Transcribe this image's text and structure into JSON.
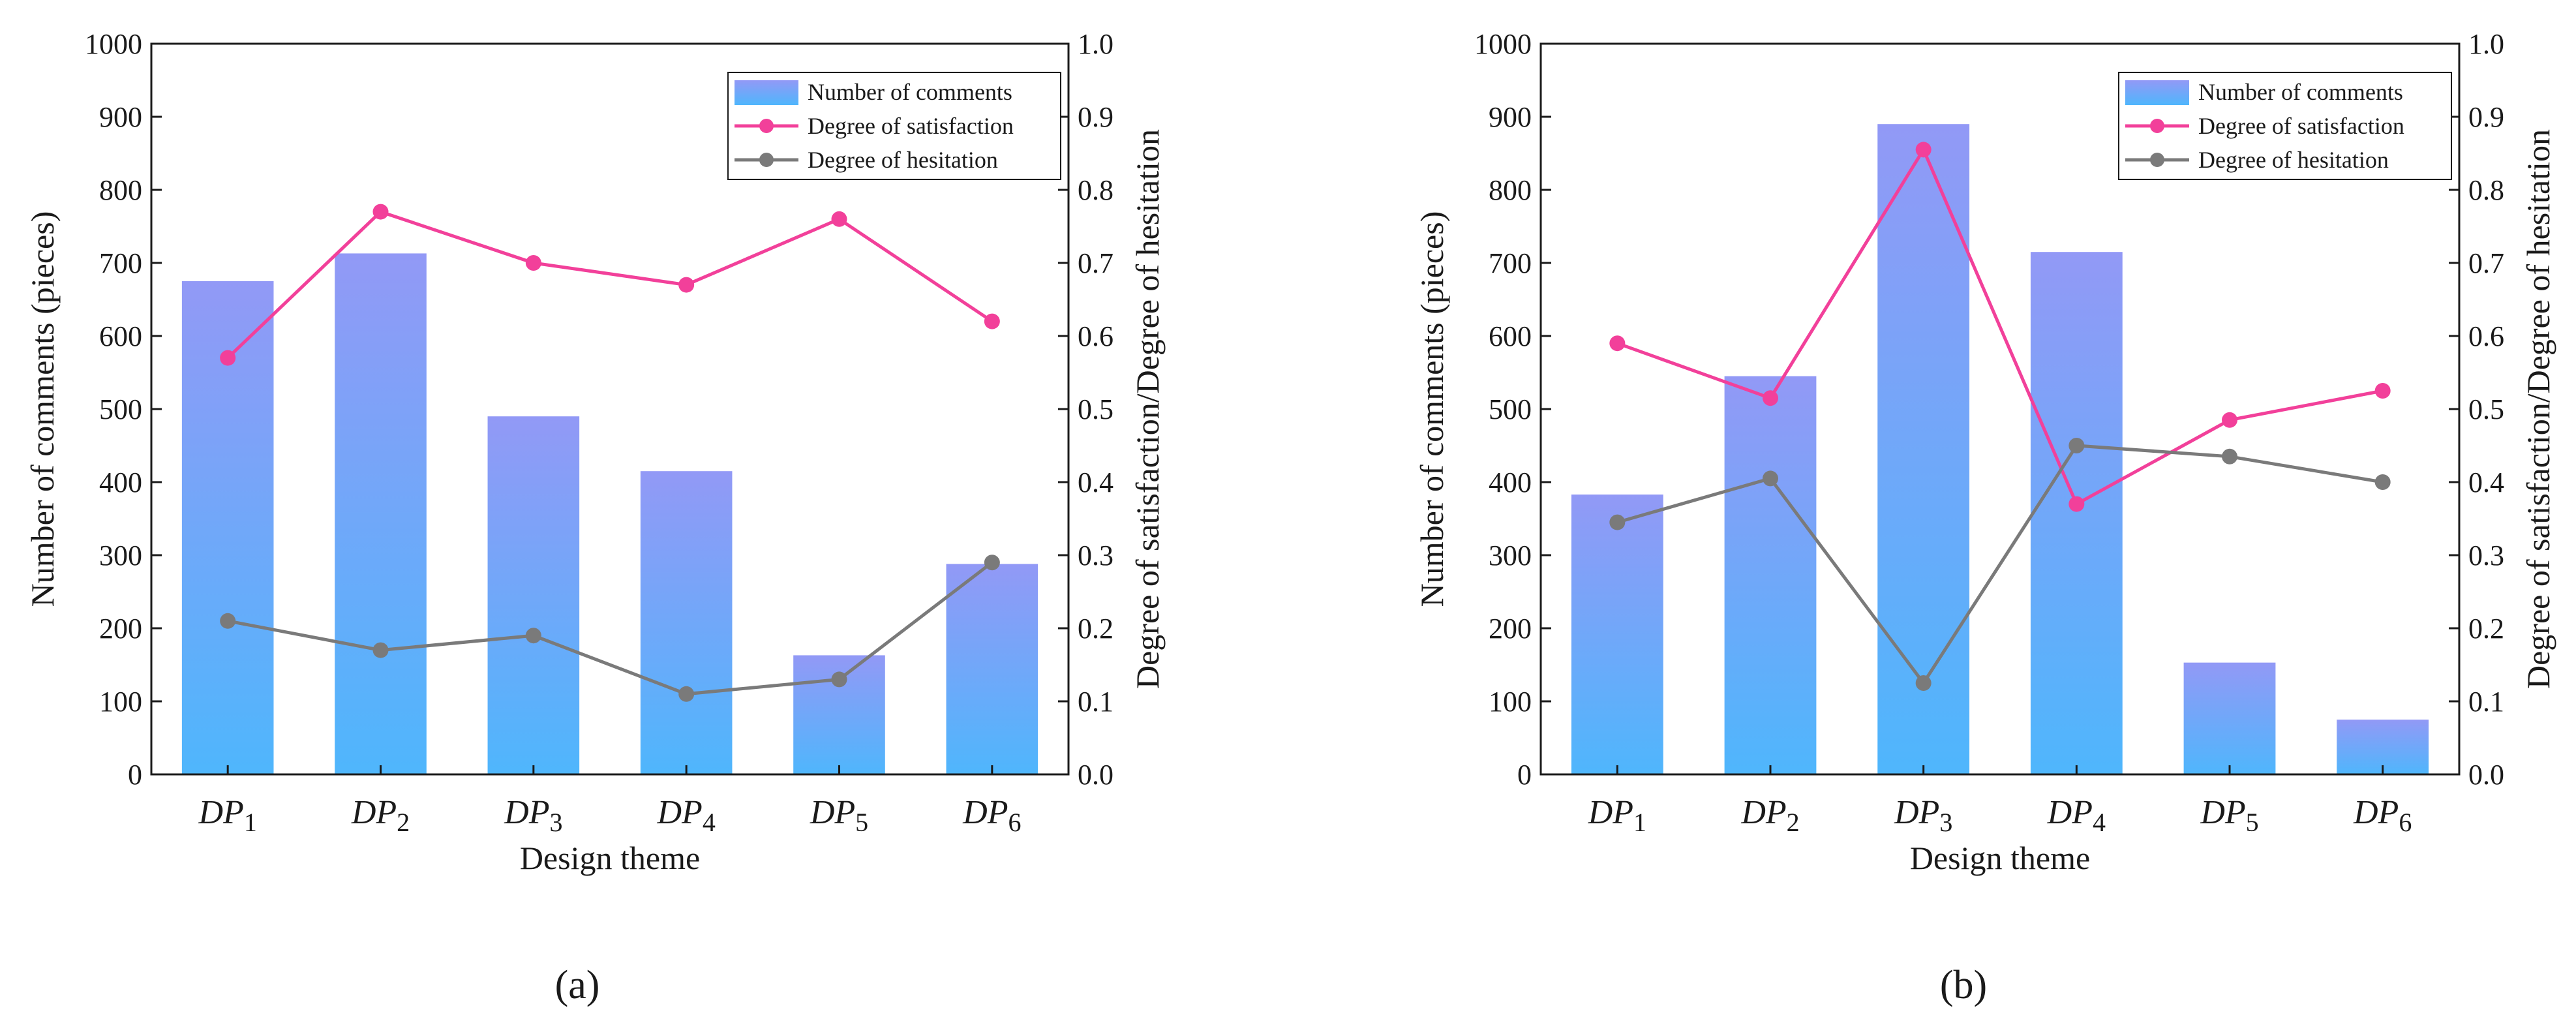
{
  "chart_data": [
    {
      "type": "bar",
      "panel_label": "a",
      "categories": [
        "DP1",
        "DP2",
        "DP3",
        "DP4",
        "DP5",
        "DP6"
      ],
      "category_labels": [
        {
          "base": "DP",
          "sub": "1"
        },
        {
          "base": "DP",
          "sub": "2"
        },
        {
          "base": "DP",
          "sub": "3"
        },
        {
          "base": "DP",
          "sub": "4"
        },
        {
          "base": "DP",
          "sub": "5"
        },
        {
          "base": "DP",
          "sub": "6"
        }
      ],
      "xlabel": "Design theme",
      "ylabel": "Number of comments (pieces)",
      "y2label": "Degree of satisfaction/Degree of hesitation",
      "ylim": [
        0,
        1000
      ],
      "y2lim": [
        0,
        1
      ],
      "yticks": [
        "0",
        "100",
        "200",
        "300",
        "400",
        "500",
        "600",
        "700",
        "800",
        "900",
        "1000"
      ],
      "y2ticks": [
        "0.0",
        "0.1",
        "0.2",
        "0.3",
        "0.4",
        "0.5",
        "0.6",
        "0.7",
        "0.8",
        "0.9",
        "1.0"
      ],
      "legend_position": "top-right",
      "series": [
        {
          "name": "Number of comments",
          "kind": "bar",
          "axis": "left",
          "values": [
            675,
            713,
            490,
            415,
            163,
            288
          ]
        },
        {
          "name": "Degree of satisfaction",
          "kind": "line",
          "axis": "right",
          "values": [
            0.57,
            0.77,
            0.7,
            0.67,
            0.76,
            0.62
          ]
        },
        {
          "name": "Degree of hesitation",
          "kind": "line",
          "axis": "right",
          "values": [
            0.21,
            0.17,
            0.19,
            0.11,
            0.13,
            0.29
          ]
        }
      ]
    },
    {
      "type": "bar",
      "panel_label": "b",
      "categories": [
        "DP1",
        "DP2",
        "DP3",
        "DP4",
        "DP5",
        "DP6"
      ],
      "category_labels": [
        {
          "base": "DP",
          "sub": "1"
        },
        {
          "base": "DP",
          "sub": "2"
        },
        {
          "base": "DP",
          "sub": "3"
        },
        {
          "base": "DP",
          "sub": "4"
        },
        {
          "base": "DP",
          "sub": "5"
        },
        {
          "base": "DP",
          "sub": "6"
        }
      ],
      "xlabel": "Design theme",
      "ylabel": "Number of comments (pieces)",
      "y2label": "Degree of satisfaction/Degree of hesitation",
      "ylim": [
        0,
        1000
      ],
      "y2lim": [
        0,
        1
      ],
      "yticks": [
        "0",
        "100",
        "200",
        "300",
        "400",
        "500",
        "600",
        "700",
        "800",
        "900",
        "1000"
      ],
      "y2ticks": [
        "0.0",
        "0.1",
        "0.2",
        "0.3",
        "0.4",
        "0.5",
        "0.6",
        "0.7",
        "0.8",
        "0.9",
        "1.0"
      ],
      "legend_position": "top-right",
      "series": [
        {
          "name": "Number of comments",
          "kind": "bar",
          "axis": "left",
          "values": [
            383,
            545,
            890,
            715,
            153,
            75
          ]
        },
        {
          "name": "Degree of satisfaction",
          "kind": "line",
          "axis": "right",
          "values": [
            0.59,
            0.515,
            0.855,
            0.37,
            0.485,
            0.525
          ]
        },
        {
          "name": "Degree of hesitation",
          "kind": "line",
          "axis": "right",
          "values": [
            0.345,
            0.405,
            0.125,
            0.45,
            0.435,
            0.4
          ]
        }
      ]
    }
  ],
  "colors": {
    "bar_top": "#9299f6",
    "bar_bottom": "#4fb6fc",
    "satisfaction": "#f2409a",
    "hesitation": "#7a7a7a",
    "axis": "#1a1a1a"
  },
  "captions": [
    "(a)",
    "(b)"
  ]
}
